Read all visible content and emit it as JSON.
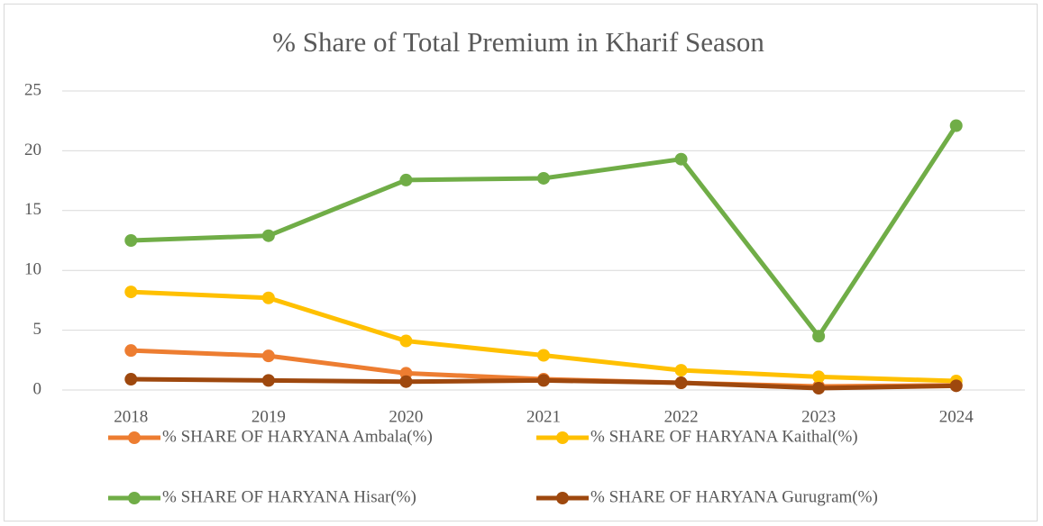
{
  "chart_data": {
    "type": "line",
    "title": "% Share of Total Premium in Kharif Season",
    "categories": [
      "2018",
      "2019",
      "2020",
      "2021",
      "2022",
      "2023",
      "2024"
    ],
    "series": [
      {
        "name": "% SHARE OF HARYANA Ambala(%)",
        "color": "#ed7d31",
        "values": [
          3.3,
          2.85,
          1.4,
          0.9,
          0.6,
          0.3,
          0.4
        ]
      },
      {
        "name": "% SHARE OF HARYANA Kaithal(%)",
        "color": "#ffc000",
        "values": [
          8.2,
          7.7,
          4.1,
          2.9,
          1.65,
          1.1,
          0.75
        ]
      },
      {
        "name": "% SHARE OF HARYANA Hisar(%)",
        "color": "#70ad47",
        "values": [
          12.5,
          12.9,
          17.55,
          17.7,
          19.3,
          4.5,
          22.1
        ]
      },
      {
        "name": "% SHARE OF HARYANA Gurugram(%)",
        "color": "#9e480e",
        "values": [
          0.9,
          0.8,
          0.7,
          0.8,
          0.6,
          0.15,
          0.35
        ]
      }
    ],
    "ylim": [
      0,
      25
    ],
    "yticks": [
      0,
      5,
      10,
      15,
      20,
      25
    ],
    "grid": true
  }
}
